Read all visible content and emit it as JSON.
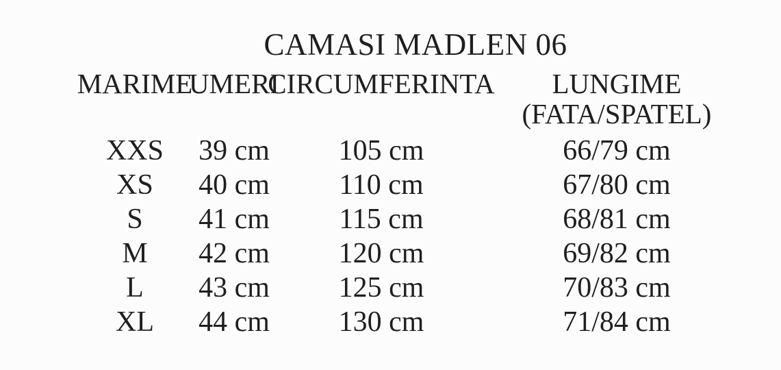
{
  "title": "CAMASI MADLEN 06",
  "table": {
    "columns": [
      {
        "label": "MARIME",
        "sublabel": ""
      },
      {
        "label": "UMERI",
        "sublabel": ""
      },
      {
        "label": "CIRCUMFERINTA",
        "sublabel": ""
      },
      {
        "label": "LUNGIME",
        "sublabel": "(FATA/SPATEL)"
      }
    ],
    "rows": [
      [
        "XXS",
        "39 cm",
        "105 cm",
        "66/79 cm"
      ],
      [
        "XS",
        "40 cm",
        "110 cm",
        "67/80 cm"
      ],
      [
        "S",
        "41 cm",
        "115 cm",
        "68/81 cm"
      ],
      [
        "M",
        "42 cm",
        "120 cm",
        "69/82 cm"
      ],
      [
        "L",
        "43 cm",
        "125 cm",
        "70/83 cm"
      ],
      [
        "XL",
        "44 cm",
        "130 cm",
        "71/84 cm"
      ]
    ]
  },
  "colors": {
    "background": "#fcfcfc",
    "text": "#1f1f1f"
  }
}
